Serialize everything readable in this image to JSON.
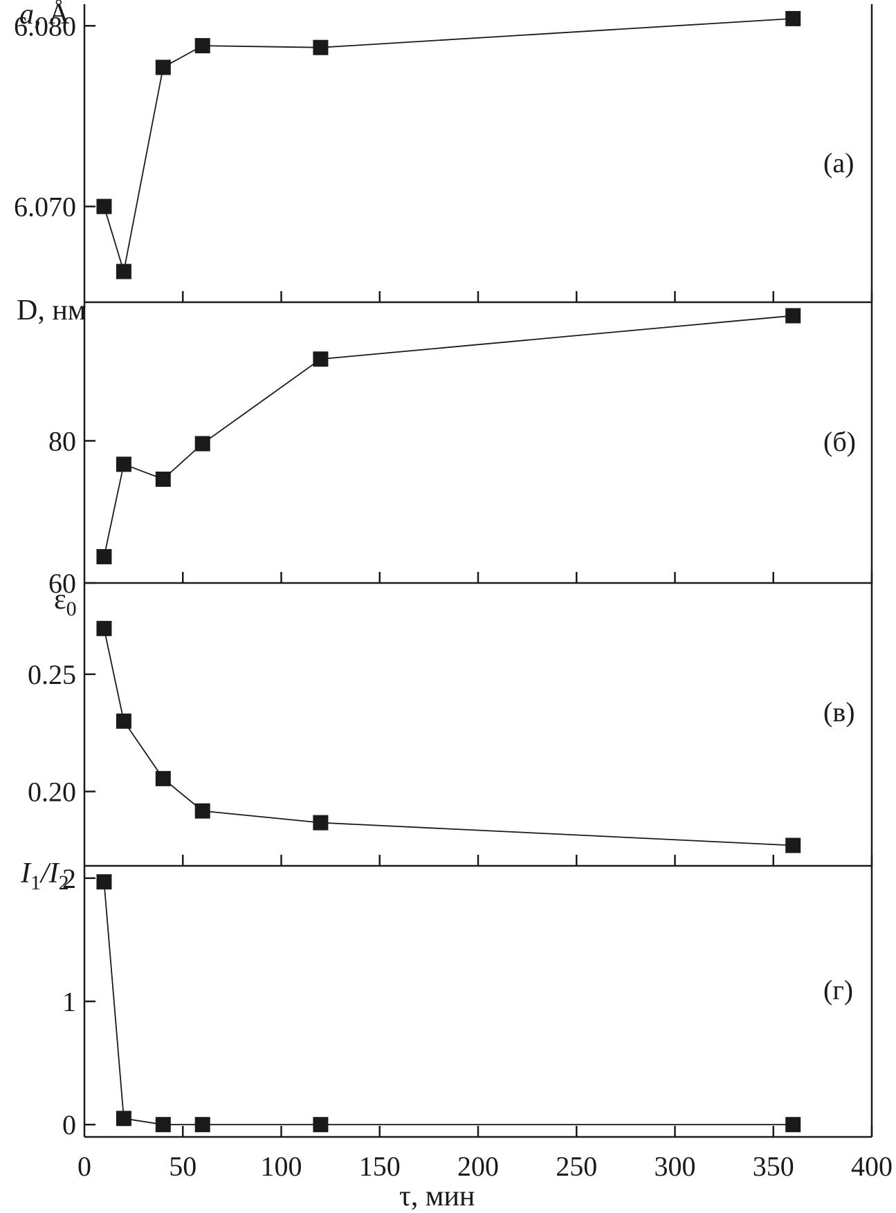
{
  "chart_data": {
    "type": "line",
    "shared_x": {
      "xlabel": "τ, мин",
      "xlim": [
        0,
        400
      ],
      "ticks": [
        0,
        50,
        100,
        150,
        200,
        250,
        300,
        350,
        400
      ],
      "tick_labels": [
        "0",
        "50",
        "100",
        "150",
        "200",
        "250",
        "300",
        "350",
        "400"
      ]
    },
    "marker": "square",
    "line_color": "#1a1a1a",
    "panels": [
      {
        "id": "a",
        "panel_label": "(а)",
        "ylabel_main": "a",
        "ylabel_sub": "",
        "ylabel_rest": ", Å",
        "ylim": [
          6.0647,
          6.0812
        ],
        "yticks": [
          6.07,
          6.08
        ],
        "ytick_labels": [
          "6.070",
          "6.080"
        ],
        "x": [
          10,
          20,
          40,
          60,
          120,
          360
        ],
        "y": [
          6.07,
          6.0664,
          6.0777,
          6.0789,
          6.0788,
          6.0804
        ]
      },
      {
        "id": "b",
        "panel_label": "(б)",
        "ylabel_main": "D",
        "ylabel_sub": "",
        "ylabel_rest": ", нм",
        "ylim": [
          60,
          99.5
        ],
        "yticks": [
          60,
          80
        ],
        "ytick_labels": [
          "60",
          "80"
        ],
        "x": [
          10,
          20,
          40,
          60,
          120,
          360
        ],
        "y": [
          63.7,
          76.7,
          74.6,
          79.6,
          91.5,
          97.6
        ]
      },
      {
        "id": "v",
        "panel_label": "(в)",
        "ylabel_main": "ε",
        "ylabel_sub": "0",
        "ylabel_rest": "",
        "ylim": [
          0.1683,
          0.2889
        ],
        "yticks": [
          0.2,
          0.25
        ],
        "ytick_labels": [
          "0.20",
          "0.25"
        ],
        "x": [
          10,
          20,
          40,
          60,
          120,
          360
        ],
        "y": [
          0.2695,
          0.23,
          0.2055,
          0.1917,
          0.1867,
          0.177
        ]
      },
      {
        "id": "g",
        "panel_label": "(г)",
        "ylabel_main": "I",
        "ylabel_sub": "1",
        "ylabel_rest": "/I",
        "ylabel_sub2": "2",
        "ylim": [
          -0.1,
          2.1
        ],
        "yticks": [
          0,
          1,
          2
        ],
        "ytick_labels": [
          "0",
          "1",
          "2"
        ],
        "x": [
          10,
          20,
          40,
          60,
          120,
          360
        ],
        "y": [
          1.97,
          0.05,
          0.0,
          0.0,
          0.0,
          0.0
        ]
      }
    ]
  }
}
